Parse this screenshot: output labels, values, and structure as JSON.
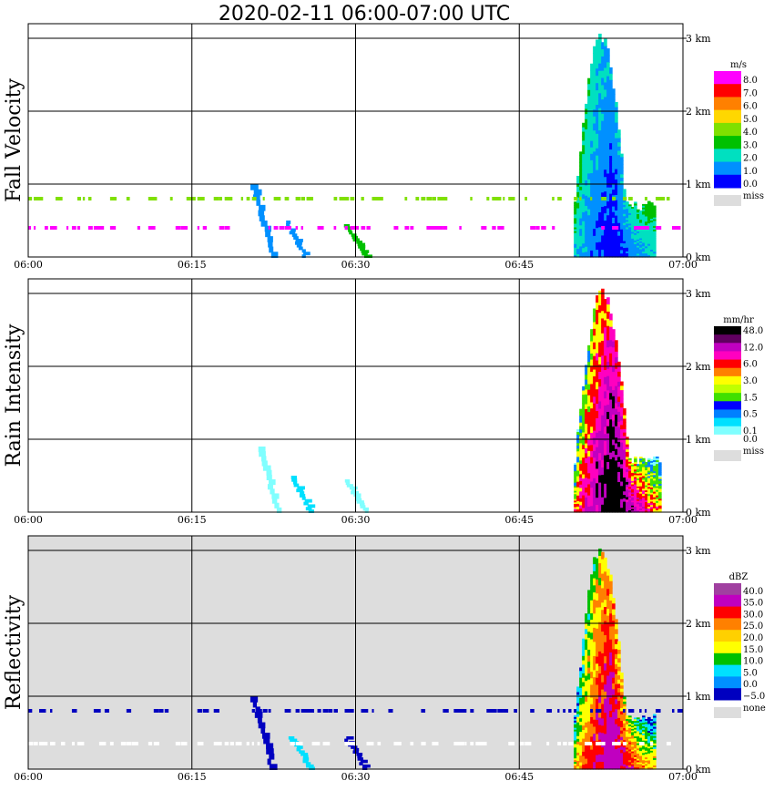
{
  "title": "2020-02-11   06:00-07:00 UTC",
  "chart_data": [
    {
      "type": "heatmap",
      "name": "Fall Velocity",
      "ylabel": "Fall Velocity",
      "x_ticks": [
        "06:00",
        "06:15",
        "06:30",
        "06:45",
        "07:00"
      ],
      "y_ticks": [
        "0 km",
        "1 km",
        "2 km",
        "3 km"
      ],
      "xlim": [
        "06:00",
        "07:00"
      ],
      "ylim_km": [
        0,
        3.2
      ],
      "background": "#ffffff",
      "colorbar": {
        "unit": "m/s",
        "entries": [
          {
            "label": "8.0",
            "color": "#ff00ff"
          },
          {
            "label": "7.0",
            "color": "#ff0000"
          },
          {
            "label": "6.0",
            "color": "#ff8000"
          },
          {
            "label": "5.0",
            "color": "#ffd700"
          },
          {
            "label": "4.0",
            "color": "#80e000"
          },
          {
            "label": "3.0",
            "color": "#00c000"
          },
          {
            "label": "2.0",
            "color": "#00e0c0"
          },
          {
            "label": "1.0",
            "color": "#0090ff"
          },
          {
            "label": "0.0",
            "color": "#0000ff"
          }
        ],
        "miss_label": "miss",
        "miss_color": "#dddddd"
      },
      "features": [
        {
          "kind": "echo",
          "t_start": 50.0,
          "t_end": 57.5,
          "h_top_km": 3.1,
          "colors": [
            "#00c000",
            "#00e0c0",
            "#0090ff",
            "#0000ff"
          ]
        },
        {
          "kind": "streak",
          "t": 20.5,
          "h_top_km": 1.0,
          "color": "#0090ff"
        },
        {
          "kind": "streak",
          "t": 23.5,
          "h_top_km": 0.5,
          "color": "#0090ff"
        },
        {
          "kind": "streak",
          "t": 29.0,
          "h_top_km": 0.45,
          "color": "#00c000"
        },
        {
          "kind": "line",
          "h_km": 0.4,
          "color": "#ff00ff"
        },
        {
          "kind": "line",
          "h_km": 0.8,
          "color": "#80e000"
        }
      ]
    },
    {
      "type": "heatmap",
      "name": "Rain Intensity",
      "ylabel": "Rain Intensity",
      "x_ticks": [
        "06:00",
        "06:15",
        "06:30",
        "06:45",
        "07:00"
      ],
      "y_ticks": [
        "0 km",
        "1 km",
        "2 km",
        "3 km"
      ],
      "xlim": [
        "06:00",
        "07:00"
      ],
      "ylim_km": [
        0,
        3.2
      ],
      "background": "#ffffff",
      "colorbar": {
        "unit": "mm/hr",
        "entries": [
          {
            "label": "48.0",
            "color": "#000000"
          },
          {
            "label": "",
            "color": "#600060"
          },
          {
            "label": "12.0",
            "color": "#c000c0"
          },
          {
            "label": "",
            "color": "#ff00c0"
          },
          {
            "label": "6.0",
            "color": "#ff0000"
          },
          {
            "label": "",
            "color": "#ff8000"
          },
          {
            "label": "3.0",
            "color": "#ffff00"
          },
          {
            "label": "",
            "color": "#c0ff00"
          },
          {
            "label": "1.5",
            "color": "#40e000"
          },
          {
            "label": "",
            "color": "#0000ff"
          },
          {
            "label": "0.5",
            "color": "#0080ff"
          },
          {
            "label": "",
            "color": "#00e0ff"
          },
          {
            "label": "0.1",
            "color": "#80ffff"
          },
          {
            "label": "0.0",
            "color": "#ffffff"
          }
        ],
        "miss_label": "miss",
        "miss_color": "#dddddd"
      },
      "features": [
        {
          "kind": "echo",
          "t_start": 50.0,
          "t_end": 58.0,
          "h_top_km": 3.1,
          "colors": [
            "#80ffff",
            "#0080ff",
            "#40e000",
            "#ffff00",
            "#ff0000",
            "#ff00c0",
            "#c000c0",
            "#000000"
          ]
        },
        {
          "kind": "streak",
          "t": 21.0,
          "h_top_km": 0.9,
          "color": "#80ffff"
        },
        {
          "kind": "streak",
          "t": 24.0,
          "h_top_km": 0.5,
          "color": "#00e0ff"
        },
        {
          "kind": "streak",
          "t": 29.0,
          "h_top_km": 0.45,
          "color": "#80ffff"
        }
      ]
    },
    {
      "type": "heatmap",
      "name": "Reflectivity",
      "ylabel": "Reflectivity",
      "x_ticks": [
        "06:00",
        "06:15",
        "06:30",
        "06:45",
        "07:00"
      ],
      "y_ticks": [
        "0 km",
        "1 km",
        "2 km",
        "3 km"
      ],
      "xlim": [
        "06:00",
        "07:00"
      ],
      "ylim_km": [
        0,
        3.2
      ],
      "background": "#dddddd",
      "colorbar": {
        "unit": "dBZ",
        "entries": [
          {
            "label": "40.0",
            "color": "#a040a0"
          },
          {
            "label": "35.0",
            "color": "#c000c0"
          },
          {
            "label": "30.0",
            "color": "#ff0000"
          },
          {
            "label": "25.0",
            "color": "#ff8000"
          },
          {
            "label": "20.0",
            "color": "#ffd000"
          },
          {
            "label": "15.0",
            "color": "#ffff00"
          },
          {
            "label": "10.0",
            "color": "#00c000"
          },
          {
            "label": "5.0",
            "color": "#00e0ff"
          },
          {
            "label": "0.0",
            "color": "#0090ff"
          },
          {
            "label": "−5.0",
            "color": "#0000c0"
          }
        ],
        "miss_label": "none",
        "miss_color": "#dddddd"
      },
      "features": [
        {
          "kind": "echo",
          "t_start": 50.0,
          "t_end": 57.5,
          "h_top_km": 3.1,
          "colors": [
            "#0000c0",
            "#00e0ff",
            "#00c000",
            "#ffff00",
            "#ff8000",
            "#ff0000",
            "#c000c0"
          ]
        },
        {
          "kind": "streak",
          "t": 20.5,
          "h_top_km": 1.0,
          "color": "#0000c0"
        },
        {
          "kind": "streak",
          "t": 24.0,
          "h_top_km": 0.45,
          "color": "#00e0ff"
        },
        {
          "kind": "streak",
          "t": 29.0,
          "h_top_km": 0.45,
          "color": "#0000c0"
        },
        {
          "kind": "line",
          "h_km": 0.35,
          "color": "#ffffff"
        },
        {
          "kind": "line",
          "h_km": 0.8,
          "color": "#0000c0"
        }
      ]
    }
  ]
}
